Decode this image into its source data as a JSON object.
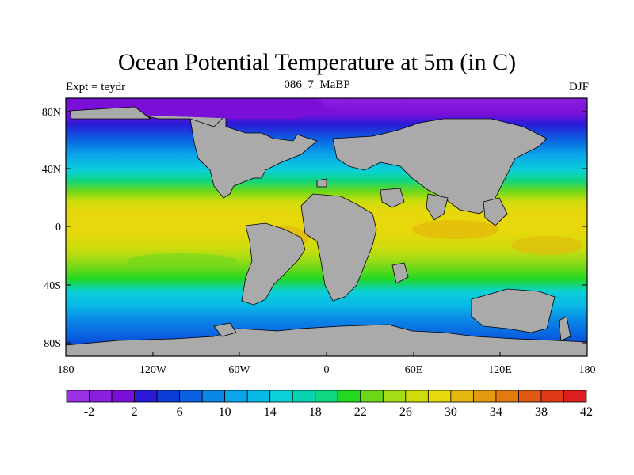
{
  "title": "Ocean Potential Temperature at 5m (in C)",
  "experiment": "Expt = teydr",
  "subtitle": "086_7_MaBP",
  "season": "DJF",
  "y_axis_labels": [
    "80N",
    "40N",
    "0",
    "40S",
    "80S"
  ],
  "x_axis_labels": [
    "180",
    "120W",
    "60W",
    "0",
    "60E",
    "120E",
    "180"
  ],
  "colorbar_labels": [
    "-2",
    "2",
    "6",
    "10",
    "14",
    "18",
    "22",
    "26",
    "30",
    "34",
    "38",
    "42"
  ],
  "colorbar_colors": [
    "#9a2fe3",
    "#8a1fe0",
    "#7a10d8",
    "#2a1ad8",
    "#0a3ed8",
    "#0a62e0",
    "#0a86e6",
    "#0aa6ea",
    "#08bae6",
    "#0ad0d8",
    "#08d2b0",
    "#10d680",
    "#22d820",
    "#6cd81a",
    "#a6dc16",
    "#cedc0c",
    "#e6d80a",
    "#e4b80c",
    "#e29a10",
    "#e27a10",
    "#e05a14",
    "#de3a1a",
    "#dc1e1e"
  ],
  "land_color": "#aaaaaa"
}
